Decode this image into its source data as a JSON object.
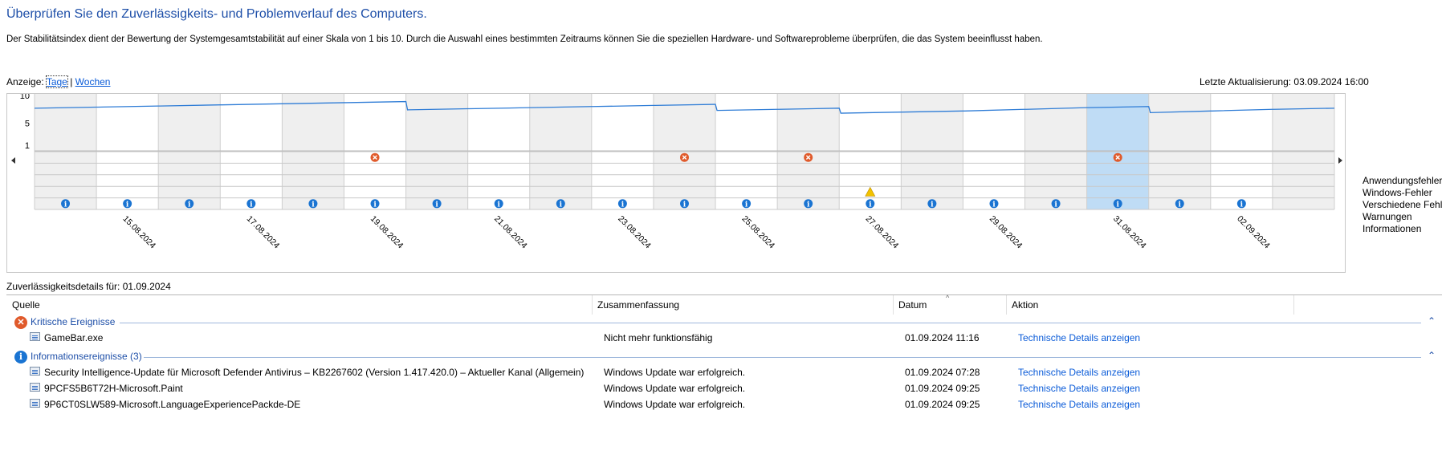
{
  "header": {
    "title": "Überprüfen Sie den Zuverlässigkeits- und Problemverlauf des Computers.",
    "description": "Der Stabilitätsindex dient der Bewertung der Systemgesamtstabilität auf einer Skala von 1 bis 10. Durch die Auswahl eines bestimmten Zeitraums können Sie die speziellen Hardware- und Softwareprobleme überprüfen, die das System beeinflusst haben."
  },
  "view": {
    "label": "Anzeige:",
    "days": "Tage",
    "separator": "|",
    "weeks": "Wochen",
    "selected": "days"
  },
  "last_update": "Letzte Aktualisierung: 03.09.2024 16:00",
  "chart": {
    "y_ticks": [
      "10",
      "5",
      "1"
    ],
    "row_labels": [
      "Anwendungsfehler",
      "Windows-Fehler",
      "Verschiedene Fehler",
      "Warnungen",
      "Informationen"
    ],
    "date_labels": [
      "15.08.2024",
      "17.08.2024",
      "19.08.2024",
      "21.08.2024",
      "23.08.2024",
      "25.08.2024",
      "27.08.2024",
      "29.08.2024",
      "31.08.2024",
      "02.09.2024"
    ]
  },
  "chart_data": {
    "type": "line",
    "x": [
      "14.08.2024",
      "15.08.2024",
      "16.08.2024",
      "17.08.2024",
      "18.08.2024",
      "19.08.2024",
      "20.08.2024",
      "21.08.2024",
      "22.08.2024",
      "23.08.2024",
      "24.08.2024",
      "25.08.2024",
      "26.08.2024",
      "27.08.2024",
      "28.08.2024",
      "29.08.2024",
      "30.08.2024",
      "31.08.2024",
      "01.09.2024",
      "02.09.2024",
      "03.09.2024"
    ],
    "series": [
      {
        "values": [
          7.7,
          7.9,
          8.1,
          8.3,
          8.5,
          8.7,
          7.4,
          7.6,
          7.8,
          8.0,
          8.2,
          7.3,
          7.5,
          6.8,
          7.0,
          7.2,
          7.5,
          7.8,
          6.9,
          7.2,
          7.5
        ]
      }
    ],
    "ylim": [
      1,
      10
    ],
    "selected_index": 17,
    "events": {
      "application_errors": [
        5,
        10,
        12,
        17
      ],
      "windows_errors": [],
      "misc_errors": [],
      "warnings": [
        13
      ],
      "information": [
        0,
        1,
        2,
        3,
        4,
        5,
        6,
        7,
        8,
        9,
        10,
        11,
        12,
        13,
        14,
        15,
        16,
        17,
        18,
        19
      ]
    }
  },
  "details": {
    "label": "Zuverlässigkeitsdetails für: 01.09.2024",
    "columns": [
      "Quelle",
      "Zusammenfassung",
      "Datum",
      "Aktion"
    ],
    "groups": [
      {
        "label": "Kritische Ereignisse",
        "rows": [
          {
            "source": "GameBar.exe",
            "summary": "Nicht mehr funktionsfähig",
            "date": "01.09.2024 11:16",
            "action": "Technische Details anzeigen"
          }
        ]
      },
      {
        "label": "Informationsereignisse (3)",
        "rows": [
          {
            "source": "Security Intelligence-Update für Microsoft Defender Antivirus – KB2267602 (Version 1.417.420.0) – Aktueller Kanal (Allgemein)",
            "summary": "Windows Update war erfolgreich.",
            "date": "01.09.2024 07:28",
            "action": "Technische Details anzeigen"
          },
          {
            "source": "9PCFS5B6T72H-Microsoft.Paint",
            "summary": "Windows Update war erfolgreich.",
            "date": "01.09.2024 09:25",
            "action": "Technische Details anzeigen"
          },
          {
            "source": "9P6CT0SLW589-Microsoft.LanguageExperiencePackde-DE",
            "summary": "Windows Update war erfolgreich.",
            "date": "01.09.2024 09:25",
            "action": "Technische Details anzeigen"
          }
        ]
      }
    ]
  },
  "colors": {
    "accent": "#1e4fa8",
    "link": "#0a5bd8",
    "error": "#e05a2b",
    "info": "#1a74d2",
    "warning": "#f2c200",
    "selected_column": "#bfdcf5",
    "shaded_column": "#efefef"
  }
}
